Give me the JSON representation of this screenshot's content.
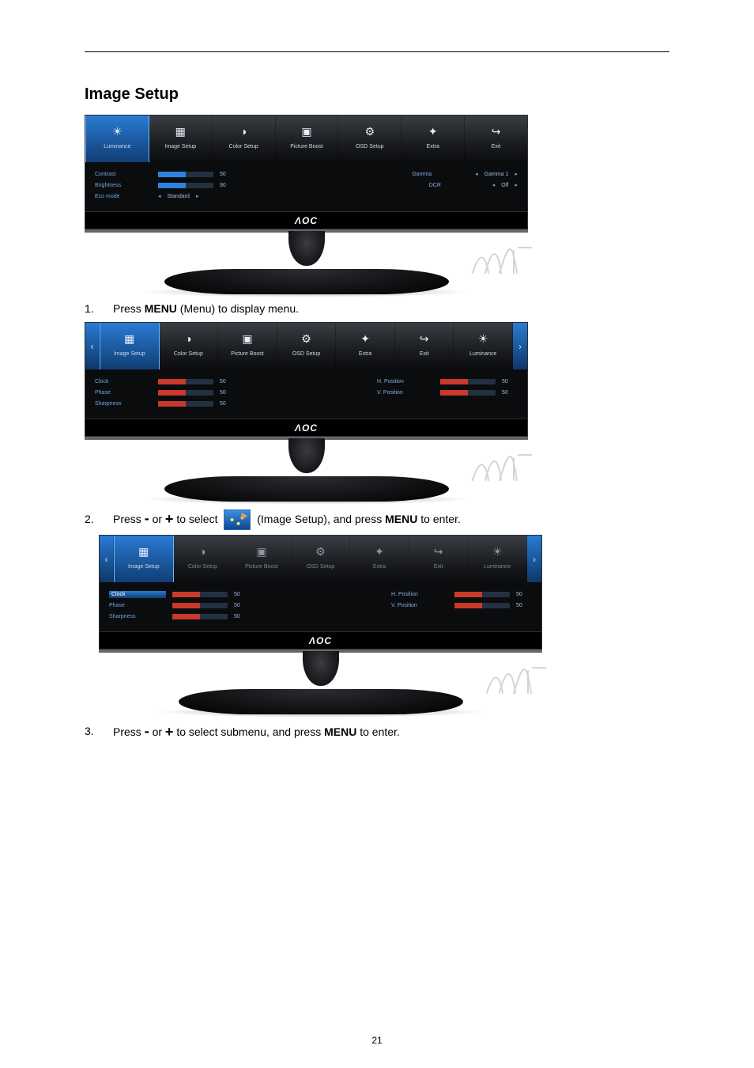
{
  "page_number": "21",
  "section_title": "Image Setup",
  "steps": [
    {
      "n": "1.",
      "pre": "Press ",
      "bold": "MENU",
      "post": " (Menu) to display menu."
    },
    {
      "n": "2.",
      "pre": "Press ",
      "minus": "-",
      "or": " or ",
      "plus": "+",
      "mid": " to select ",
      "after_icon": " (Image Setup), and press ",
      "bold": "MENU",
      "post": " to enter."
    },
    {
      "n": "3.",
      "pre": "Press ",
      "minus": "-",
      "or": " or ",
      "plus": "+",
      "mid": " to select submenu, and press ",
      "bold": "MENU",
      "post": " to enter."
    }
  ],
  "osd_logo": "ΛOC",
  "figures": [
    {
      "active_index": 0,
      "show_chevrons": false,
      "tabs": [
        {
          "label": "Luminance",
          "icon": "☀"
        },
        {
          "label": "Image Setup",
          "icon": "▦"
        },
        {
          "label": "Color Setup",
          "icon": "◑"
        },
        {
          "label": "Picture Boost",
          "icon": "▣"
        },
        {
          "label": "OSD Setup",
          "icon": "⚙"
        },
        {
          "label": "Extra",
          "icon": "✦"
        },
        {
          "label": "Exit",
          "icon": "↪"
        }
      ],
      "left_rows": [
        {
          "label": "Contrast",
          "val": "50",
          "bar": "b"
        },
        {
          "label": "Brightness",
          "val": "90",
          "bar": "b"
        },
        {
          "label": "Eco mode",
          "val": "",
          "bar": "",
          "triL": "◂",
          "extra": "Standard",
          "triR": "▸"
        }
      ],
      "right_rows": [
        {
          "label": "Gamma",
          "triL": "◂",
          "extra": "Gamma 1",
          "triR": "▸"
        },
        {
          "label": "DCR",
          "triL": "◂",
          "extra": "Off",
          "triR": "▸"
        }
      ]
    },
    {
      "active_index": 0,
      "show_chevrons": true,
      "tabs": [
        {
          "label": "Image Setup",
          "icon": "▦"
        },
        {
          "label": "Color Setup",
          "icon": "◑"
        },
        {
          "label": "Picture Boost",
          "icon": "▣"
        },
        {
          "label": "OSD Setup",
          "icon": "⚙"
        },
        {
          "label": "Extra",
          "icon": "✦"
        },
        {
          "label": "Exit",
          "icon": "↪"
        },
        {
          "label": "Luminance",
          "icon": "☀"
        }
      ],
      "left_rows": [
        {
          "label": "Clock",
          "val": "50",
          "bar": "r"
        },
        {
          "label": "Phase",
          "val": "50",
          "bar": "r"
        },
        {
          "label": "Sharpness",
          "val": "50",
          "bar": "r"
        }
      ],
      "right_rows": [
        {
          "label": "H. Position",
          "val": "50",
          "bar": "r"
        },
        {
          "label": "V. Position",
          "val": "50",
          "bar": "r"
        }
      ]
    },
    {
      "active_index": 0,
      "show_chevrons": true,
      "dim_tabs": true,
      "tabs": [
        {
          "label": "Image Setup",
          "icon": "▦"
        },
        {
          "label": "Color Setup",
          "icon": "◑"
        },
        {
          "label": "Picture Boost",
          "icon": "▣"
        },
        {
          "label": "OSD Setup",
          "icon": "⚙"
        },
        {
          "label": "Extra",
          "icon": "✦"
        },
        {
          "label": "Exit",
          "icon": "↪"
        },
        {
          "label": "Luminance",
          "icon": "☀"
        }
      ],
      "left_rows": [
        {
          "label": "Clock",
          "val": "50",
          "bar": "r",
          "highlight": true
        },
        {
          "label": "Phase",
          "val": "50",
          "bar": "r"
        },
        {
          "label": "Sharpness",
          "val": "50",
          "bar": "r"
        }
      ],
      "right_rows": [
        {
          "label": "H. Position",
          "val": "50",
          "bar": "r"
        },
        {
          "label": "V. Position",
          "val": "50",
          "bar": "r"
        }
      ]
    }
  ]
}
